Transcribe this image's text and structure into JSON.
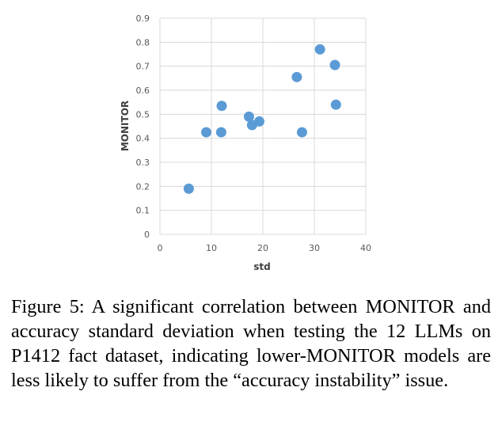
{
  "chart_data": {
    "type": "scatter",
    "xlabel": "std",
    "ylabel": "MONITOR",
    "xlim": [
      0,
      40
    ],
    "ylim": [
      0,
      0.9
    ],
    "x_ticks": [
      "0",
      "10",
      "20",
      "30",
      "40"
    ],
    "y_ticks": [
      "0",
      "0.1",
      "0.2",
      "0.3",
      "0.4",
      "0.5",
      "0.6",
      "0.7",
      "0.8",
      "0.9"
    ],
    "grid": true,
    "legend": "none",
    "marker_color": "#5b9bd5",
    "points": [
      {
        "x": 5.6,
        "y": 0.19
      },
      {
        "x": 9.0,
        "y": 0.425
      },
      {
        "x": 11.9,
        "y": 0.425
      },
      {
        "x": 12.0,
        "y": 0.535
      },
      {
        "x": 17.3,
        "y": 0.49
      },
      {
        "x": 17.9,
        "y": 0.455
      },
      {
        "x": 19.3,
        "y": 0.47
      },
      {
        "x": 26.6,
        "y": 0.655
      },
      {
        "x": 27.6,
        "y": 0.425
      },
      {
        "x": 31.1,
        "y": 0.77
      },
      {
        "x": 34.0,
        "y": 0.705
      },
      {
        "x": 34.2,
        "y": 0.54
      }
    ]
  },
  "caption": "Figure 5: A significant correlation between MONITOR and accuracy standard deviation when testing the 12 LLMs on P1412 fact dataset, indicating lower-MONITOR models are less likely to suffer from the “accuracy instability” issue."
}
